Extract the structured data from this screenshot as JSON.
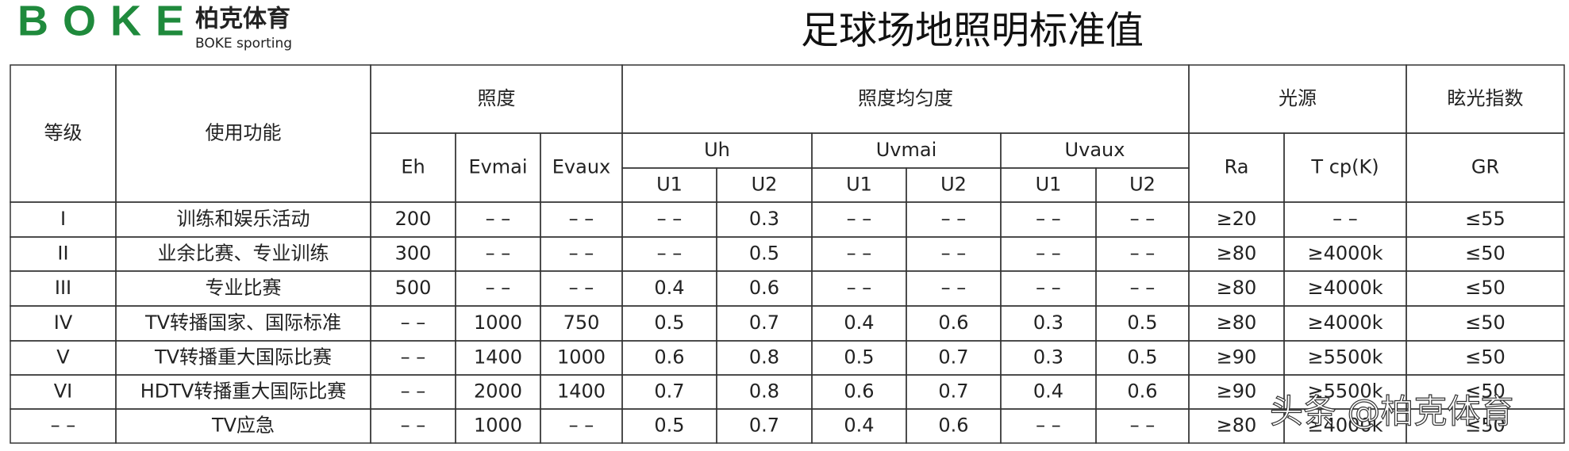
{
  "header": {
    "logo": "BOKE",
    "brand": "柏克体育",
    "brand_en": "BOKE sporting",
    "title": "足球场地照明标准值"
  },
  "table": {
    "head": [
      "等级",
      "使用功能",
      "照度",
      "照度均匀度",
      "光源",
      "眩光指数",
      "Eh",
      "Evmai",
      "Evaux",
      "Uh",
      "Uvmai",
      "Uvaux",
      "Ra",
      "T cp(K)",
      "GR",
      "U1",
      "U2",
      "U1",
      "U2",
      "U1",
      "U2"
    ],
    "rows": [
      [
        "I",
        "训练和娱乐活动",
        "200",
        "– –",
        "– –",
        "– –",
        "0.3",
        "– –",
        "– –",
        "– –",
        "– –",
        "≥20",
        "– –",
        "≤55"
      ],
      [
        "II",
        "业余比赛、专业训练",
        "300",
        "– –",
        "– –",
        "– –",
        "0.5",
        "– –",
        "– –",
        "– –",
        "– –",
        "≥80",
        "≥4000k",
        "≤50"
      ],
      [
        "III",
        "专业比赛",
        "500",
        "– –",
        "– –",
        "0.4",
        "0.6",
        "– –",
        "– –",
        "– –",
        "– –",
        "≥80",
        "≥4000k",
        "≤50"
      ],
      [
        "IV",
        "TV转播国家、国际标准",
        "– –",
        "1000",
        "750",
        "0.5",
        "0.7",
        "0.4",
        "0.6",
        "0.3",
        "0.5",
        "≥80",
        "≥4000k",
        "≤50"
      ],
      [
        "V",
        "TV转播重大国际比赛",
        "– –",
        "1400",
        "1000",
        "0.6",
        "0.8",
        "0.5",
        "0.7",
        "0.3",
        "0.5",
        "≥90",
        "≥5500k",
        "≤50"
      ],
      [
        "VI",
        "HDTV转播重大国际比赛",
        "– –",
        "2000",
        "1400",
        "0.7",
        "0.8",
        "0.6",
        "0.7",
        "0.4",
        "0.6",
        "≥90",
        "≥5500k",
        "≤50"
      ],
      [
        "– –",
        "TV应急",
        "– –",
        "1000",
        "– –",
        "0.5",
        "0.7",
        "0.4",
        "0.6",
        "– –",
        "– –",
        "≥80",
        "≥4000k",
        "≤50"
      ]
    ]
  },
  "watermark": "头条 @柏克体育"
}
